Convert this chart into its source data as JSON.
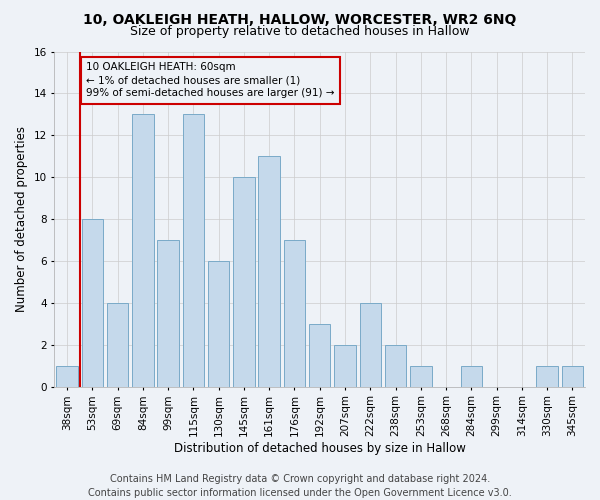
{
  "title": "10, OAKLEIGH HEATH, HALLOW, WORCESTER, WR2 6NQ",
  "subtitle": "Size of property relative to detached houses in Hallow",
  "xlabel": "Distribution of detached houses by size in Hallow",
  "ylabel": "Number of detached properties",
  "footer_line1": "Contains HM Land Registry data © Crown copyright and database right 2024.",
  "footer_line2": "Contains public sector information licensed under the Open Government Licence v3.0.",
  "categories": [
    "38sqm",
    "53sqm",
    "69sqm",
    "84sqm",
    "99sqm",
    "115sqm",
    "130sqm",
    "145sqm",
    "161sqm",
    "176sqm",
    "192sqm",
    "207sqm",
    "222sqm",
    "238sqm",
    "253sqm",
    "268sqm",
    "284sqm",
    "299sqm",
    "314sqm",
    "330sqm",
    "345sqm"
  ],
  "values": [
    1,
    8,
    4,
    13,
    7,
    13,
    6,
    10,
    11,
    7,
    3,
    2,
    4,
    2,
    1,
    0,
    1,
    0,
    0,
    1,
    1
  ],
  "bar_color": "#c5d9eb",
  "bar_edge_color": "#7aaac8",
  "highlight_index": 1,
  "highlight_line_color": "#cc0000",
  "annotation_text": "10 OAKLEIGH HEATH: 60sqm\n← 1% of detached houses are smaller (1)\n99% of semi-detached houses are larger (91) →",
  "annotation_box_color": "#cc0000",
  "ylim": [
    0,
    16
  ],
  "yticks": [
    0,
    2,
    4,
    6,
    8,
    10,
    12,
    14,
    16
  ],
  "grid_color": "#cccccc",
  "background_color": "#eef2f7",
  "title_fontsize": 10,
  "subtitle_fontsize": 9,
  "axis_label_fontsize": 8.5,
  "tick_fontsize": 7.5,
  "footer_fontsize": 7,
  "annotation_fontsize": 7.5
}
